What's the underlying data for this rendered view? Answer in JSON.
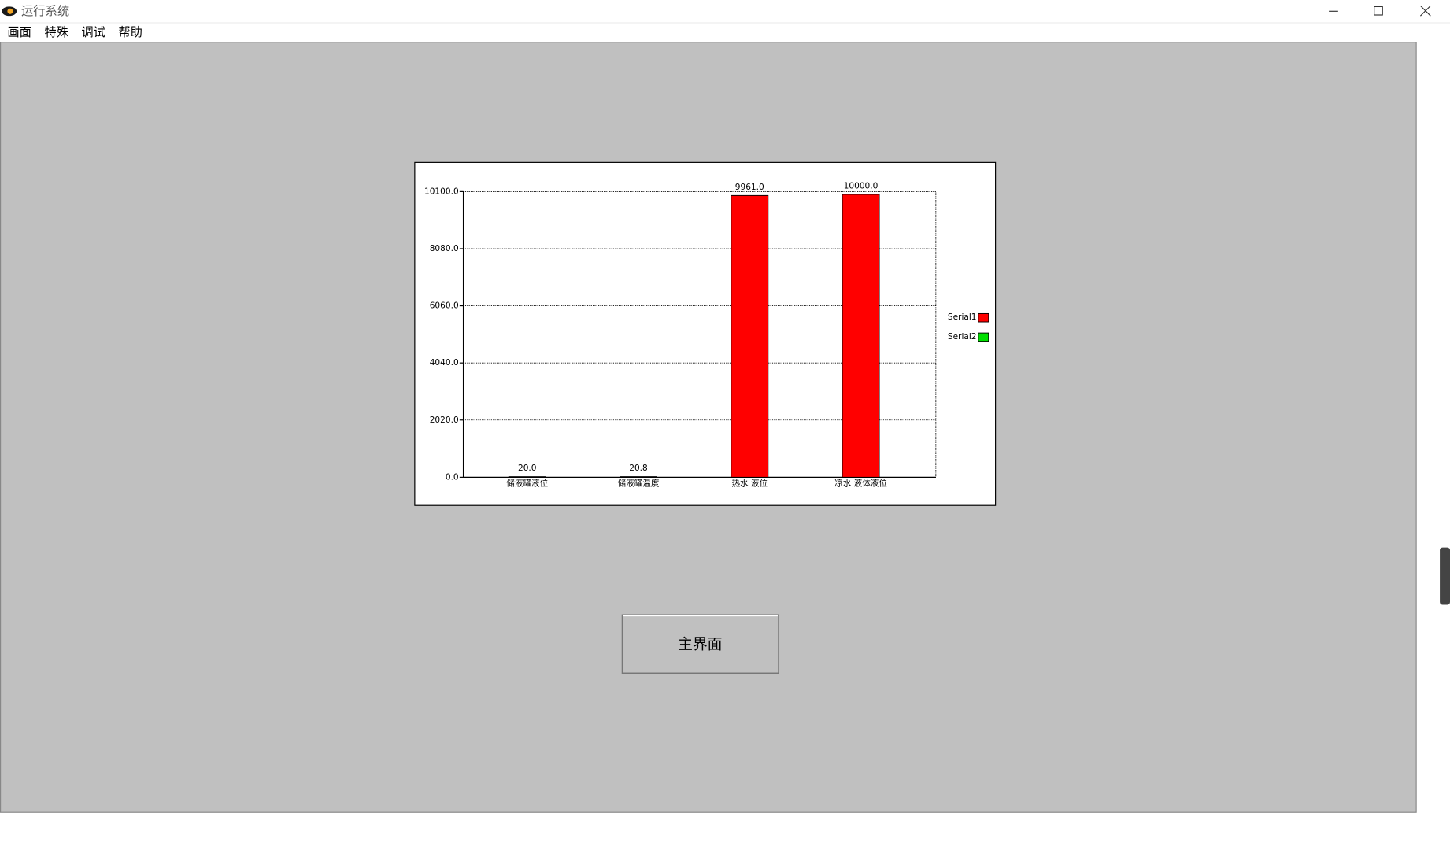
{
  "window": {
    "title": "运行系统"
  },
  "menu": [
    "画面",
    "特殊",
    "调试",
    "帮助"
  ],
  "button": {
    "label": "主界面"
  },
  "chart_data": {
    "type": "bar",
    "categories": [
      "储液罐液位",
      "储液罐温度",
      "热水 液位",
      "凉水 液体液位"
    ],
    "series": [
      {
        "name": "Serial1",
        "color": "#ff0000",
        "values": [
          20.0,
          20.8,
          9961.0,
          10000.0
        ],
        "value_labels": [
          "20.0",
          "20.8",
          "9961.0",
          "10000.0"
        ]
      },
      {
        "name": "Serial2",
        "color": "#00e000",
        "values": [
          null,
          null,
          null,
          null
        ]
      }
    ],
    "ylim": [
      0,
      10100
    ],
    "yticks": [
      {
        "value": 0,
        "label": "0.0"
      },
      {
        "value": 2020,
        "label": "2020.0"
      },
      {
        "value": 4040,
        "label": "4040.0"
      },
      {
        "value": 6060,
        "label": "6060.0"
      },
      {
        "value": 8080,
        "label": "8080.0"
      },
      {
        "value": 10100,
        "label": "10100.0"
      }
    ],
    "grid": true,
    "legend": "right"
  }
}
